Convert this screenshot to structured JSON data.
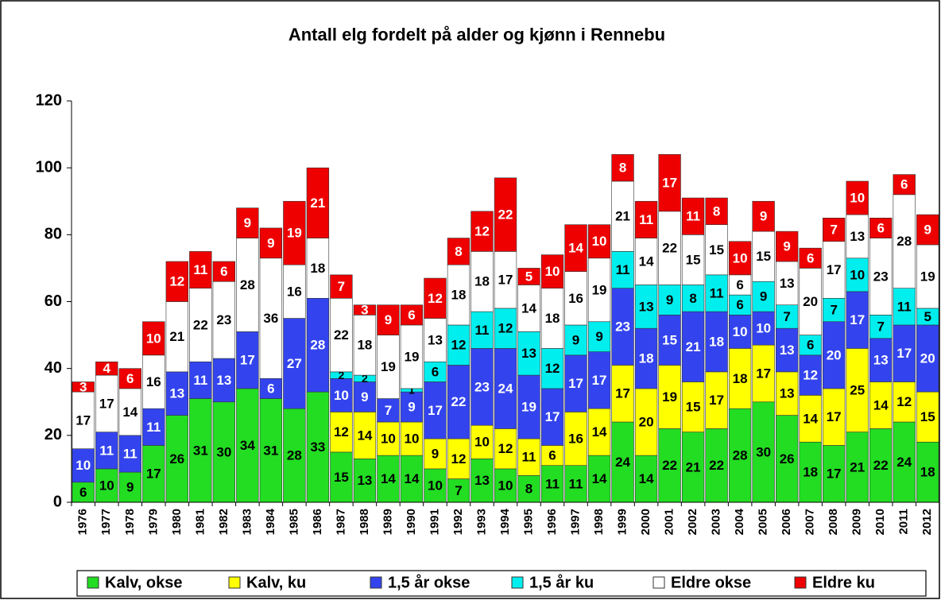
{
  "chart_data": {
    "type": "stacked-bar",
    "title": "Antall elg fordelt på alder og kjønn i Rennebu",
    "categories": [
      "1976",
      "1977",
      "1978",
      "1979",
      "1980",
      "1981",
      "1982",
      "1983",
      "1984",
      "1985",
      "1986",
      "1987",
      "1988",
      "1989",
      "1990",
      "1991",
      "1992",
      "1993",
      "1994",
      "1995",
      "1996",
      "1997",
      "1998",
      "1999",
      "2000",
      "2001",
      "2002",
      "2003",
      "2004",
      "2005",
      "2006",
      "2007",
      "2008",
      "2009",
      "2010",
      "2011",
      "2012"
    ],
    "series": [
      {
        "name": "Kalv, okse",
        "color": "#22dd22",
        "label_color": "#000000",
        "values": [
          6,
          10,
          9,
          17,
          26,
          31,
          30,
          34,
          31,
          28,
          33,
          15,
          13,
          14,
          14,
          10,
          7,
          13,
          10,
          8,
          11,
          11,
          14,
          24,
          14,
          22,
          21,
          22,
          28,
          30,
          26,
          18,
          17,
          21,
          22,
          24,
          18
        ]
      },
      {
        "name": "Kalv, ku",
        "color": "#ffff00",
        "label_color": "#000000",
        "values": [
          null,
          null,
          null,
          null,
          null,
          null,
          null,
          null,
          null,
          null,
          null,
          12,
          14,
          10,
          10,
          9,
          12,
          10,
          12,
          11,
          6,
          16,
          14,
          17,
          20,
          19,
          15,
          17,
          18,
          17,
          13,
          14,
          17,
          25,
          14,
          12,
          15
        ]
      },
      {
        "name": "1,5 år okse",
        "color": "#3344ee",
        "label_color": "#ffffff",
        "values": [
          10,
          11,
          11,
          11,
          13,
          11,
          13,
          17,
          6,
          27,
          28,
          10,
          9,
          7,
          9,
          17,
          22,
          23,
          24,
          19,
          17,
          17,
          17,
          23,
          18,
          15,
          21,
          18,
          10,
          10,
          13,
          12,
          20,
          17,
          13,
          17,
          20
        ]
      },
      {
        "name": "1,5 år ku",
        "color": "#00eeee",
        "label_color": "#000000",
        "values": [
          null,
          null,
          null,
          null,
          null,
          null,
          null,
          null,
          null,
          null,
          null,
          2,
          2,
          null,
          1,
          6,
          12,
          11,
          12,
          13,
          12,
          9,
          9,
          11,
          13,
          9,
          8,
          11,
          6,
          9,
          7,
          6,
          7,
          10,
          7,
          11,
          5
        ]
      },
      {
        "name": "Eldre okse",
        "color": "#ffffff",
        "label_color": "#000000",
        "values": [
          17,
          17,
          14,
          16,
          21,
          22,
          23,
          28,
          36,
          16,
          18,
          22,
          18,
          19,
          19,
          13,
          18,
          18,
          17,
          14,
          18,
          16,
          19,
          21,
          14,
          22,
          15,
          15,
          6,
          15,
          13,
          20,
          17,
          13,
          23,
          28,
          19
        ]
      },
      {
        "name": "Eldre ku",
        "color": "#ee0000",
        "label_color": "#ffffff",
        "values": [
          3,
          4,
          6,
          10,
          12,
          11,
          6,
          9,
          9,
          19,
          21,
          7,
          3,
          9,
          6,
          12,
          8,
          12,
          22,
          5,
          10,
          14,
          10,
          8,
          11,
          17,
          11,
          8,
          10,
          9,
          9,
          6,
          7,
          10,
          6,
          6,
          9
        ]
      }
    ],
    "ylim": [
      0,
      120
    ],
    "yticks": [
      0,
      20,
      40,
      60,
      80,
      100,
      120
    ],
    "grid": false
  }
}
